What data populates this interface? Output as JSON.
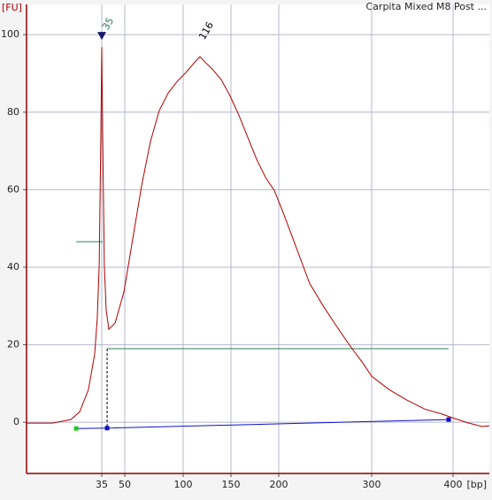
{
  "chart_data": {
    "type": "line",
    "title": "Carpita Mixed M8 Post ...",
    "y_label": "[FU]",
    "x_label": "[bp]",
    "xlim": [
      0,
      444
    ],
    "ylim": [
      -13.2,
      107.8
    ],
    "xticks": [
      35,
      50,
      100,
      150,
      200,
      300,
      400
    ],
    "yticks": [
      0,
      20,
      40,
      60,
      80,
      100
    ],
    "grid": true,
    "series": [
      {
        "color": "#b00000",
        "x": [
          0,
          12,
          20.6,
          24.7,
          28.8,
          31.7,
          32.9,
          33.8,
          34.6,
          35,
          35.6,
          36.7,
          37.9,
          39.6,
          43.7,
          49.4,
          56.8,
          64.4,
          72,
          79.5,
          87.1,
          94.7,
          102.8,
          112,
          117.6,
          123.1,
          130.6,
          139.8,
          149.1,
          158.3,
          167.6,
          176.9,
          186.1,
          195.4,
          204.8,
          219,
          233.3,
          247.6,
          261.9,
          276.2,
          290.5,
          300,
          321.7,
          343.5,
          365.2,
          387,
          400,
          419.3,
          435.3,
          444
        ],
        "values": [
          -0.2,
          -0.2,
          0.7,
          2.7,
          8.4,
          17.6,
          26.7,
          40.4,
          74.7,
          96.8,
          74.7,
          40.4,
          29,
          24,
          25.6,
          33.6,
          47.3,
          61,
          72.4,
          80.4,
          84.9,
          87.9,
          90.2,
          92.9,
          94.3,
          92.9,
          91.1,
          88.4,
          84.2,
          79.2,
          73.5,
          67.8,
          63.2,
          59.8,
          54.1,
          45,
          35.8,
          30.1,
          24.9,
          19.9,
          15.3,
          11.9,
          8.4,
          5.7,
          3.4,
          2.1,
          1.1,
          -0.2,
          -1.1,
          -0.9
        ]
      }
    ],
    "baseline": {
      "color": "#1010c8",
      "x": [
        23.1,
        38.5,
        394.6
      ],
      "values": [
        -1.6,
        -1.5,
        0.7
      ]
    },
    "levels": [
      {
        "color": "#2e7d5a",
        "x": [
          23.1,
          35.6
        ],
        "values": [
          46.6,
          46.6
        ]
      },
      {
        "color": "#2e7d5a",
        "x": [
          38.5,
          394.6
        ],
        "values": [
          19,
          19
        ]
      }
    ],
    "peaks": [
      {
        "x": 35,
        "y": 96.8,
        "color": "#2e7d5a"
      },
      {
        "x": 116,
        "y": 94.3,
        "color": "#000000"
      }
    ]
  }
}
